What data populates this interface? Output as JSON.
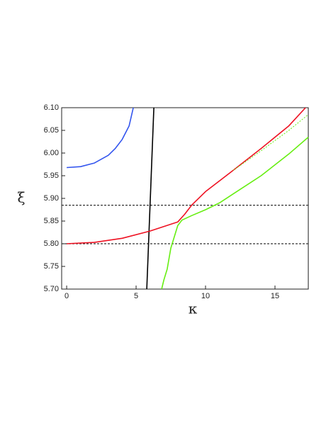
{
  "chart_data": {
    "type": "line",
    "xlabel": "κ",
    "ylabel": "ξ",
    "xlim": [
      -0.36,
      17.45
    ],
    "ylim": [
      5.7,
      6.1
    ],
    "xticks": [
      0,
      5,
      10,
      15
    ],
    "yticks": [
      {
        "value": 5.7,
        "label": "5.70"
      },
      5.75,
      {
        "value": 5.8,
        "label": "5.80"
      },
      5.85,
      {
        "value": 5.9,
        "label": "5.90"
      },
      5.95,
      {
        "value": 6.0,
        "label": "6.00"
      },
      6.05,
      {
        "value": 6.1,
        "label": "6.10"
      }
    ],
    "reference_lines": [
      {
        "value": 5.885,
        "color": "#333333"
      },
      {
        "value": 5.8,
        "color": "#333333"
      }
    ],
    "series": [
      {
        "color": "#3355ee",
        "dashed": false,
        "x": [
          0,
          1,
          2,
          3,
          3.5,
          4,
          4.5,
          4.8
        ],
        "values": [
          5.968,
          5.97,
          5.978,
          5.995,
          6.01,
          6.03,
          6.06,
          6.1
        ]
      },
      {
        "color": "#000000",
        "dashed": false,
        "x": [
          5.77,
          6.28
        ],
        "values": [
          5.7,
          6.1
        ]
      },
      {
        "color": "#ee1122",
        "dashed": false,
        "x": [
          0,
          2,
          4,
          6,
          8,
          8.5,
          9,
          10,
          12,
          14,
          16,
          17.2
        ],
        "values": [
          5.8,
          5.803,
          5.812,
          5.828,
          5.848,
          5.865,
          5.885,
          5.915,
          5.962,
          6.01,
          6.06,
          6.1
        ]
      },
      {
        "color": "#66ee11",
        "dashed": false,
        "x": [
          6.84,
          7.0,
          7.24,
          7.5,
          8.0,
          8.3,
          9,
          10,
          11,
          12,
          14,
          16,
          17.4
        ],
        "values": [
          5.7,
          5.72,
          5.744,
          5.79,
          5.84,
          5.852,
          5.862,
          5.875,
          5.89,
          5.91,
          5.95,
          5.998,
          6.035
        ]
      },
      {
        "color": "#66ee11",
        "dashed": true,
        "x": [
          12,
          14,
          16,
          17.4
        ],
        "values": [
          5.962,
          6.005,
          6.05,
          6.085
        ]
      }
    ]
  }
}
